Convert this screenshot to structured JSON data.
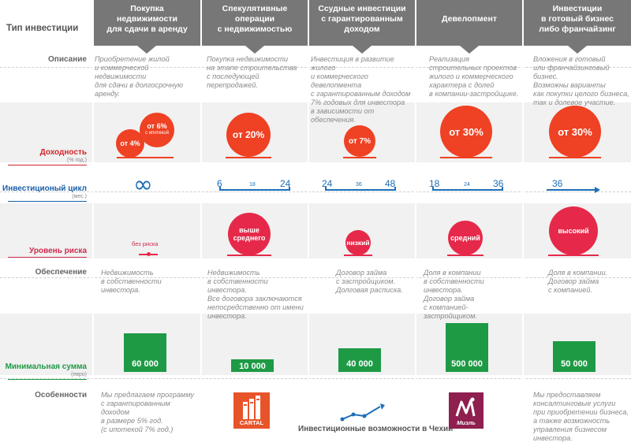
{
  "corner_title": "Тип инвестиции",
  "columns": [
    "Покупка недвижимости\nдля сдачи в аренду",
    "Спекулятивные операции\nс недвижимостью",
    "Ссудные инвестиции\nс гарантированным\nдоходом",
    "Девелопмент",
    "Инвестиции\nв готовый бизнес\nлибо франчайзинг"
  ],
  "rows": {
    "description": "Описание",
    "yield": "Доходность",
    "yield_unit": "(% год.)",
    "cycle": "Инвестиционый цикл",
    "cycle_unit": "(мес.)",
    "risk": "Уровень риска",
    "security": "Обеспечение",
    "min_sum": "Минимальная сумма",
    "min_sum_unit": "(евро)",
    "features": "Особенности"
  },
  "descriptions": [
    "Приобретение жилой\nи коммерческой недвижимости\nдля сдачи в долгосрочную аренду.",
    "Покупка недвижимости\nна этапе строительства\nс последующей перепродажей.",
    "Инвестиция в развитие жилого\nи коммерческого девелопмента\nс гарантированным доходом\n7% годовых для инвестора\nв зависимости от обеспечения.",
    "Реализация\nстроительных проектов\nжилого и коммерческого\nхарактера с долей\nв компании-застройщике.",
    "Вложения в готовый\nили франчайзинговый бизнес.\nВозможны варианты\nкак покупки целого бизнеса,\nтак и долевое участие."
  ],
  "yields": {
    "col1_a": "от 4%",
    "col1_b_line1": "от 6%",
    "col1_b_line2": "с ипотекой",
    "col2": "от 20%",
    "col3": "от 7%",
    "col4": "от 30%",
    "col5": "от 30%"
  },
  "yield_values_percent": [
    4,
    6,
    20,
    7,
    30,
    30
  ],
  "cycles": {
    "col1": "∞",
    "col2": {
      "min": "6",
      "mid": "18",
      "max": "24"
    },
    "col3": {
      "min": "24",
      "mid": "36",
      "max": "48"
    },
    "col4": {
      "min": "18",
      "mid": "24",
      "max": "36"
    },
    "col5": {
      "min": "36"
    }
  },
  "risks": [
    "без риска",
    "выше\nсреднего",
    "низкий",
    "средний",
    "высокий"
  ],
  "securities": [
    "Недвижимость\nв собственности инвестора.",
    "Недвижимость\nв собственности инвестора.\nВсе договора заключаются\nнепосредственно от имени\nинвестора.",
    "Договор займа\nс застройщиком.\nДолговая расписка.",
    "Доля в компании\nв собственности инвестора.\nДоговор займа\nс компанией-застройщиком.",
    "Доля в компании.\nДоговор займа\nс компанией."
  ],
  "min_sums": [
    "60 000",
    "10 000",
    "40 000",
    "500 000",
    "50 000"
  ],
  "min_sum_values_eur": [
    60000,
    10000,
    40000,
    500000,
    50000
  ],
  "features": {
    "col1": "Мы предлагаем программу\nс гарантированным доходом\nв размере 5% год.\n(с ипотекой 7% год.)",
    "col5": "Мы предоставляем\nконсалтинговые услуги\nпри приобретении бизнеса,\nа также возможность\nуправления бизнесом\nинвестора.",
    "logo_cartal": "CARTAL",
    "logo_mizan": "Мизль",
    "caption": "Инвестиционные возможности в Чехии"
  },
  "colors": {
    "header": "#777777",
    "orange": "#ef4123",
    "pink": "#e6294a",
    "blue": "#1d6fb8",
    "green": "#1e9a45",
    "logo_cartal": "#e8542a",
    "logo_mizan": "#8e1f4f"
  }
}
